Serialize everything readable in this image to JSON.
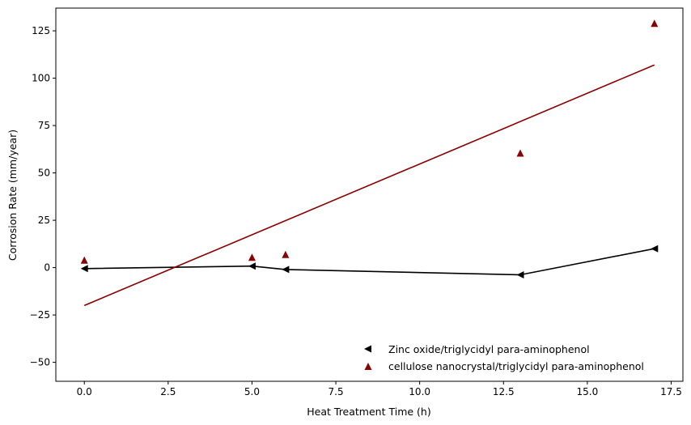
{
  "chart_data": {
    "type": "scatter",
    "xlabel": "Heat Treatment Time (h)",
    "ylabel": "Corrosion Rate (mm/year)",
    "xlim": [
      -0.85,
      17.85
    ],
    "ylim": [
      -60,
      137
    ],
    "x_ticks": [
      0.0,
      2.5,
      5.0,
      7.5,
      10.0,
      12.5,
      15.0,
      17.5
    ],
    "x_tick_labels": [
      "0.0",
      "2.5",
      "5.0",
      "7.5",
      "10.0",
      "12.5",
      "15.0",
      "17.5"
    ],
    "y_ticks": [
      -50,
      -25,
      0,
      25,
      50,
      75,
      100,
      125
    ],
    "y_tick_labels": [
      "−50",
      "−25",
      "0",
      "25",
      "50",
      "75",
      "100",
      "125"
    ],
    "grid": false,
    "legend_position": "bottom-right",
    "series": [
      {
        "name": "Zinc oxide/triglycidyl para-aminophenol",
        "marker": "triangle-left",
        "color": "#000000",
        "connected": true,
        "x": [
          0,
          5,
          6,
          13,
          17
        ],
        "y": [
          -0.5,
          0.8,
          -1.0,
          -3.8,
          10.0
        ]
      },
      {
        "name": "cellulose nanocrystal/triglycidyl para-aminophenol",
        "marker": "triangle-up",
        "color": "#8b0000",
        "connected": false,
        "x": [
          0,
          5,
          6,
          13,
          17
        ],
        "y": [
          4.0,
          5.5,
          7.0,
          60.5,
          129.0
        ],
        "trendline": {
          "x": [
            0,
            17
          ],
          "y": [
            -20.0,
            107.0
          ],
          "color": "#8b0000"
        }
      }
    ]
  }
}
